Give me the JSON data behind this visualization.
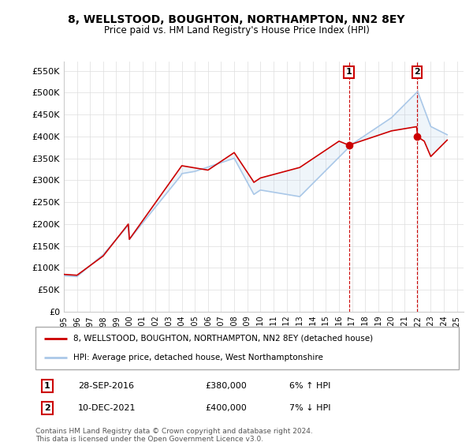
{
  "title": "8, WELLSTOOD, BOUGHTON, NORTHAMPTON, NN2 8EY",
  "subtitle": "Price paid vs. HM Land Registry's House Price Index (HPI)",
  "ylabel_ticks": [
    "£0",
    "£50K",
    "£100K",
    "£150K",
    "£200K",
    "£250K",
    "£300K",
    "£350K",
    "£400K",
    "£450K",
    "£500K",
    "£550K"
  ],
  "ytick_values": [
    0,
    50000,
    100000,
    150000,
    200000,
    250000,
    300000,
    350000,
    400000,
    450000,
    500000,
    550000
  ],
  "ylim": [
    0,
    570000
  ],
  "xlim_start": 1995.0,
  "xlim_end": 2025.5,
  "xtick_years": [
    1995,
    1996,
    1997,
    1998,
    1999,
    2000,
    2001,
    2002,
    2003,
    2004,
    2005,
    2006,
    2007,
    2008,
    2009,
    2010,
    2011,
    2012,
    2013,
    2014,
    2015,
    2016,
    2017,
    2018,
    2019,
    2020,
    2021,
    2022,
    2023,
    2024,
    2025
  ],
  "hpi_color": "#aac8e8",
  "sale_color": "#cc0000",
  "annotation_box_color": "#cc0000",
  "background_color": "#ffffff",
  "grid_color": "#dddddd",
  "legend_sale_label": "8, WELLSTOOD, BOUGHTON, NORTHAMPTON, NN2 8EY (detached house)",
  "legend_hpi_label": "HPI: Average price, detached house, West Northamptonshire",
  "sale1_label": "1",
  "sale1_date": "28-SEP-2016",
  "sale1_price": "£380,000",
  "sale1_hpi": "6% ↑ HPI",
  "sale1_year": 2016.75,
  "sale1_value": 380000,
  "sale2_label": "2",
  "sale2_date": "10-DEC-2021",
  "sale2_price": "£400,000",
  "sale2_hpi": "7% ↓ HPI",
  "sale2_year": 2021.95,
  "sale2_value": 400000,
  "footnote": "Contains HM Land Registry data © Crown copyright and database right 2024.\nThis data is licensed under the Open Government Licence v3.0."
}
